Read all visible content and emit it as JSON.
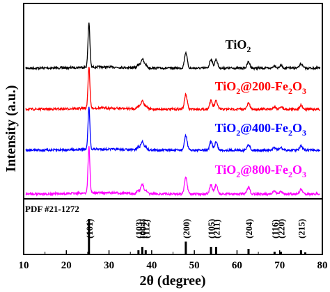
{
  "chart_data": {
    "type": "line",
    "xlabel_prefix": "2θ",
    "xlabel_suffix": " (degree)",
    "ylabel": "Intensity (a.u.)",
    "xlim": [
      10,
      80
    ],
    "x_ticks": [
      10,
      20,
      30,
      40,
      50,
      60,
      70,
      80
    ],
    "series": [
      {
        "name": "TiO2",
        "label_parts": [
          [
            "TiO",
            ""
          ],
          [
            "2",
            "sub"
          ]
        ],
        "color": "#000000"
      },
      {
        "name": "TiO2@200-Fe2O3",
        "label_parts": [
          [
            "TiO",
            ""
          ],
          [
            "2",
            "sub"
          ],
          [
            "@200-Fe",
            ""
          ],
          [
            "2",
            "sub"
          ],
          [
            "O",
            ""
          ],
          [
            "3",
            "sub"
          ]
        ],
        "color": "#ff0000"
      },
      {
        "name": "TiO2@400-Fe2O3",
        "label_parts": [
          [
            "TiO",
            ""
          ],
          [
            "2",
            "sub"
          ],
          [
            "@400-Fe",
            ""
          ],
          [
            "2",
            "sub"
          ],
          [
            "O",
            ""
          ],
          [
            "3",
            "sub"
          ]
        ],
        "color": "#0000ff"
      },
      {
        "name": "TiO2@800-Fe2O3",
        "label_parts": [
          [
            "TiO",
            ""
          ],
          [
            "2",
            "sub"
          ],
          [
            "@800-Fe",
            ""
          ],
          [
            "2",
            "sub"
          ],
          [
            "O",
            ""
          ],
          [
            "3",
            "sub"
          ]
        ],
        "color": "#ff00ff"
      }
    ],
    "peaks": [
      {
        "x": 25.3,
        "h": 1.0
      },
      {
        "x": 36.9,
        "h": 0.07
      },
      {
        "x": 37.8,
        "h": 0.2
      },
      {
        "x": 38.6,
        "h": 0.07
      },
      {
        "x": 48.0,
        "h": 0.35
      },
      {
        "x": 53.9,
        "h": 0.2
      },
      {
        "x": 55.1,
        "h": 0.2
      },
      {
        "x": 62.7,
        "h": 0.14
      },
      {
        "x": 68.8,
        "h": 0.06
      },
      {
        "x": 70.3,
        "h": 0.06
      },
      {
        "x": 75.0,
        "h": 0.1
      }
    ],
    "reference": {
      "label": "PDF #21-1272",
      "hkl": [
        "(101)",
        "(103)",
        "(004)",
        "(112)",
        "(200)",
        "(105)",
        "(211)",
        "(204)",
        "(116)",
        "(220)",
        "(215)"
      ],
      "hkl_x": [
        25.3,
        36.9,
        37.8,
        38.6,
        48.0,
        53.9,
        55.1,
        62.7,
        68.8,
        70.3,
        75.0
      ],
      "sticks": [
        {
          "x": 25.3,
          "h": 100
        },
        {
          "x": 36.9,
          "h": 10
        },
        {
          "x": 37.8,
          "h": 20
        },
        {
          "x": 38.6,
          "h": 10
        },
        {
          "x": 48.0,
          "h": 35
        },
        {
          "x": 53.9,
          "h": 20
        },
        {
          "x": 55.1,
          "h": 20
        },
        {
          "x": 62.7,
          "h": 14
        },
        {
          "x": 68.8,
          "h": 6
        },
        {
          "x": 70.3,
          "h": 6
        },
        {
          "x": 75.0,
          "h": 10
        },
        {
          "x": 76.0,
          "h": 4
        }
      ]
    }
  }
}
